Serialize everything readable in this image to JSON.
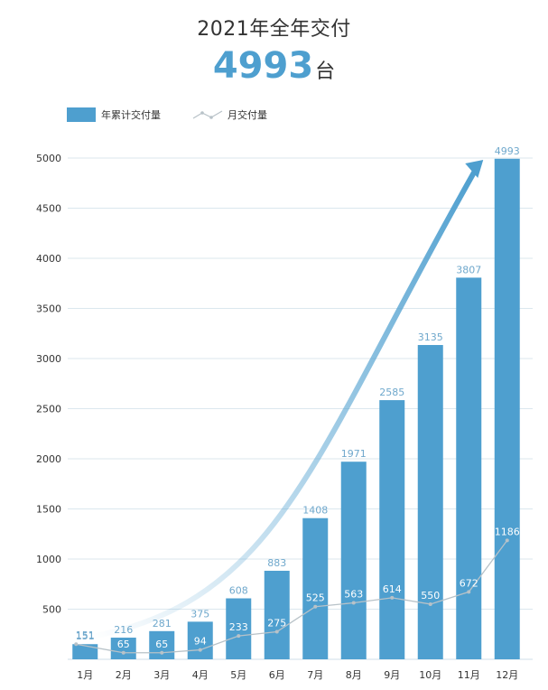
{
  "header": {
    "title": "2021年全年交付",
    "total_value": "4993",
    "total_unit": "台"
  },
  "colors": {
    "bar": "#4e9fcf",
    "line": "#b8c2c8",
    "accent": "#4e9fcf"
  },
  "chart_data": {
    "type": "bar",
    "categories": [
      "1月",
      "2月",
      "3月",
      "4月",
      "5月",
      "6月",
      "7月",
      "8月",
      "9月",
      "10月",
      "11月",
      "12月"
    ],
    "series": [
      {
        "name": "年累计交付量",
        "type": "bar",
        "values": [
          151,
          216,
          281,
          375,
          608,
          883,
          1408,
          1971,
          2585,
          3135,
          3807,
          4993
        ]
      },
      {
        "name": "月交付量",
        "type": "line",
        "values": [
          151,
          65,
          65,
          94,
          233,
          275,
          525,
          563,
          614,
          550,
          672,
          1186
        ]
      }
    ],
    "y_ticks": [
      500,
      1000,
      1500,
      2000,
      2500,
      3000,
      3500,
      4000,
      4500,
      5000
    ],
    "ylim": [
      0,
      5000
    ],
    "grid": true,
    "legend_position": "top-left",
    "trend_arrow": true
  }
}
